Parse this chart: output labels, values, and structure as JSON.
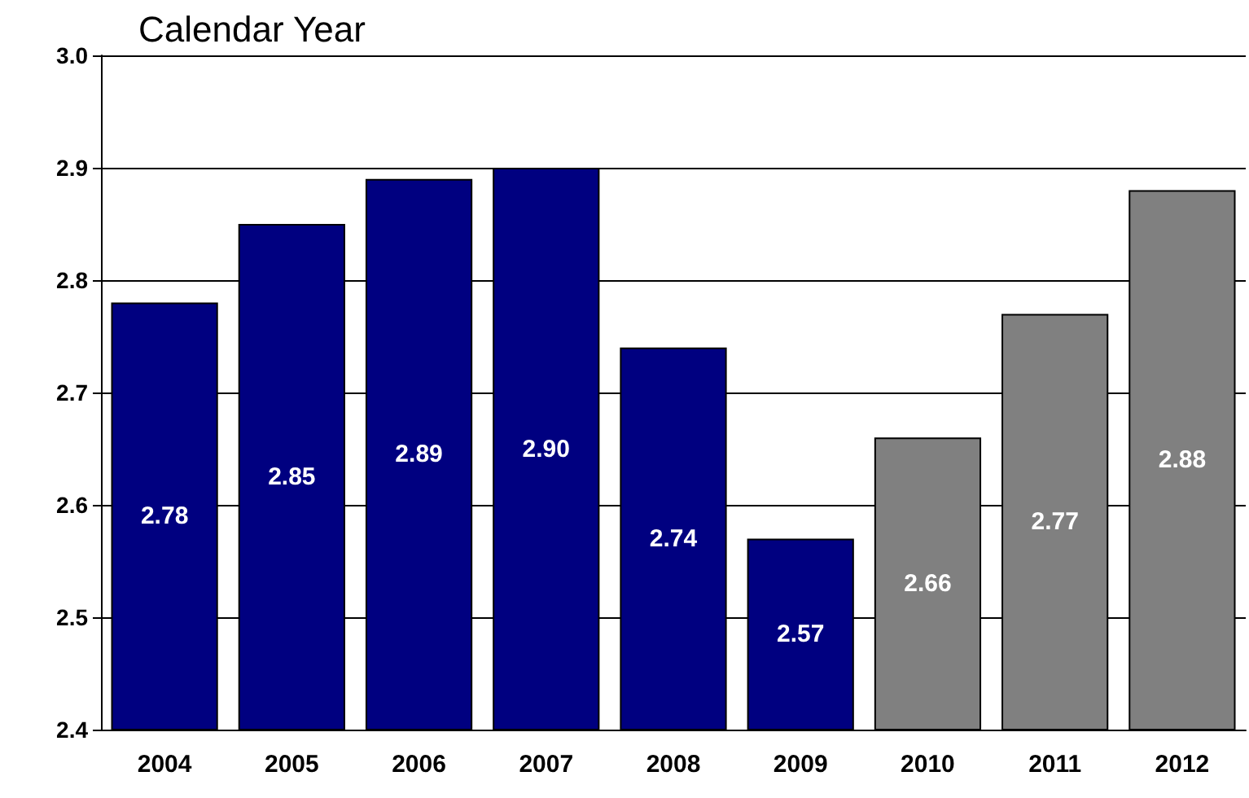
{
  "chart_data": {
    "type": "bar",
    "title": "Calendar Year",
    "categories": [
      "2004",
      "2005",
      "2006",
      "2007",
      "2008",
      "2009",
      "2010",
      "2011",
      "2012"
    ],
    "values": [
      2.78,
      2.85,
      2.89,
      2.9,
      2.74,
      2.57,
      2.66,
      2.77,
      2.88
    ],
    "colors": [
      "#000080",
      "#000080",
      "#000080",
      "#000080",
      "#000080",
      "#000080",
      "#808080",
      "#808080",
      "#808080"
    ],
    "value_labels": [
      "2.78",
      "2.85",
      "2.89",
      "2.90",
      "2.74",
      "2.57",
      "2.66",
      "2.77",
      "2.88"
    ],
    "ylim": [
      2.4,
      3.0
    ],
    "yticks": [
      2.4,
      2.5,
      2.6,
      2.7,
      2.8,
      2.9,
      {
        "value": 3.0,
        "label": "3.0"
      }
    ],
    "grid": "y"
  }
}
